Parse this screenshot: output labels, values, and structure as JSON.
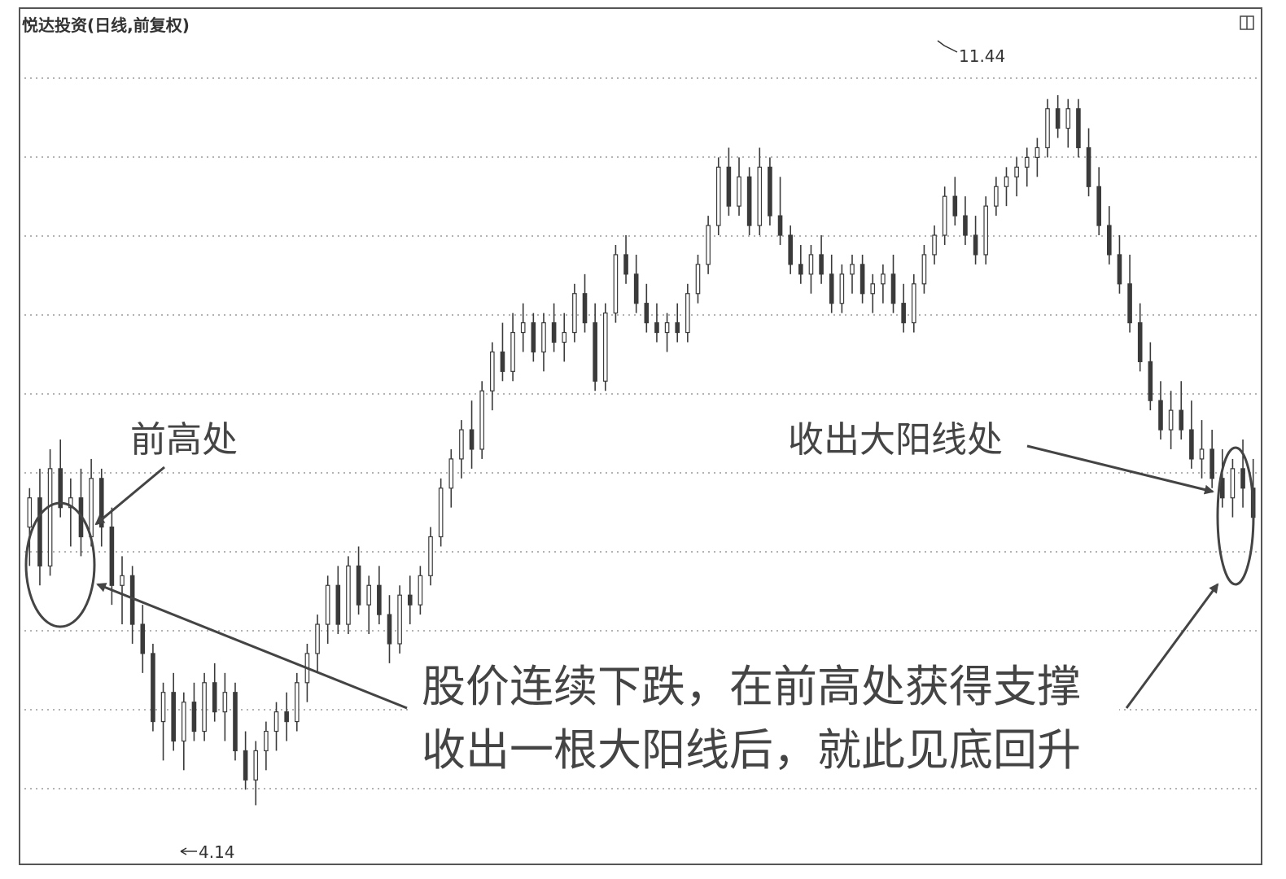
{
  "chart_data": {
    "type": "candlestick",
    "title": "悦达投资(日线,前复权)",
    "grid": true,
    "price_labels": {
      "high": "11.44",
      "low": "4.14"
    },
    "ylim": [
      3.8,
      12.0
    ],
    "marks": {
      "high_price": 11.44,
      "low_price": 4.14
    },
    "colors": {
      "bar": "#3a3a3a",
      "grid": "#9a9a9a",
      "frame": "#555555",
      "annotation": "#444444"
    },
    "candles": [
      [
        7.0,
        7.4,
        6.6,
        7.3
      ],
      [
        7.3,
        7.6,
        6.4,
        6.6
      ],
      [
        6.6,
        7.8,
        6.5,
        7.6
      ],
      [
        7.6,
        7.9,
        7.1,
        7.2
      ],
      [
        7.2,
        7.5,
        6.8,
        7.3
      ],
      [
        7.3,
        7.6,
        6.7,
        6.9
      ],
      [
        6.9,
        7.7,
        6.8,
        7.5
      ],
      [
        7.5,
        7.6,
        6.8,
        7.0
      ],
      [
        7.0,
        7.2,
        6.2,
        6.4
      ],
      [
        6.4,
        6.7,
        6.0,
        6.5
      ],
      [
        6.5,
        6.6,
        5.8,
        6.0
      ],
      [
        6.0,
        6.2,
        5.5,
        5.7
      ],
      [
        5.7,
        5.8,
        4.9,
        5.0
      ],
      [
        5.0,
        5.4,
        4.6,
        5.3
      ],
      [
        5.3,
        5.5,
        4.7,
        4.8
      ],
      [
        4.8,
        5.3,
        4.5,
        5.2
      ],
      [
        5.2,
        5.4,
        4.8,
        4.9
      ],
      [
        4.9,
        5.5,
        4.8,
        5.4
      ],
      [
        5.4,
        5.6,
        5.0,
        5.1
      ],
      [
        5.1,
        5.5,
        4.8,
        5.3
      ],
      [
        5.3,
        5.4,
        4.6,
        4.7
      ],
      [
        4.7,
        4.9,
        4.3,
        4.4
      ],
      [
        4.4,
        4.8,
        4.14,
        4.7
      ],
      [
        4.7,
        5.0,
        4.5,
        4.9
      ],
      [
        4.9,
        5.2,
        4.7,
        5.1
      ],
      [
        5.1,
        5.3,
        4.8,
        5.0
      ],
      [
        5.0,
        5.5,
        4.9,
        5.4
      ],
      [
        5.4,
        5.8,
        5.2,
        5.7
      ],
      [
        5.7,
        6.1,
        5.5,
        6.0
      ],
      [
        6.0,
        6.5,
        5.8,
        6.4
      ],
      [
        6.4,
        6.6,
        5.9,
        6.0
      ],
      [
        6.0,
        6.7,
        5.9,
        6.6
      ],
      [
        6.6,
        6.8,
        6.1,
        6.2
      ],
      [
        6.2,
        6.5,
        5.9,
        6.4
      ],
      [
        6.4,
        6.6,
        6.0,
        6.1
      ],
      [
        6.1,
        6.3,
        5.6,
        5.8
      ],
      [
        5.8,
        6.4,
        5.7,
        6.3
      ],
      [
        6.3,
        6.5,
        6.0,
        6.2
      ],
      [
        6.2,
        6.6,
        6.1,
        6.5
      ],
      [
        6.5,
        7.0,
        6.4,
        6.9
      ],
      [
        6.9,
        7.5,
        6.8,
        7.4
      ],
      [
        7.4,
        7.8,
        7.2,
        7.7
      ],
      [
        7.7,
        8.1,
        7.5,
        8.0
      ],
      [
        8.0,
        8.3,
        7.6,
        7.8
      ],
      [
        7.8,
        8.5,
        7.7,
        8.4
      ],
      [
        8.4,
        8.9,
        8.2,
        8.8
      ],
      [
        8.8,
        9.1,
        8.5,
        8.6
      ],
      [
        8.6,
        9.2,
        8.5,
        9.0
      ],
      [
        9.0,
        9.3,
        8.8,
        9.1
      ],
      [
        9.1,
        9.2,
        8.7,
        8.8
      ],
      [
        8.8,
        9.2,
        8.6,
        9.1
      ],
      [
        9.1,
        9.3,
        8.8,
        8.9
      ],
      [
        8.9,
        9.2,
        8.7,
        9.0
      ],
      [
        9.0,
        9.5,
        8.9,
        9.4
      ],
      [
        9.4,
        9.6,
        9.0,
        9.1
      ],
      [
        9.1,
        9.3,
        8.4,
        8.5
      ],
      [
        8.5,
        9.3,
        8.4,
        9.2
      ],
      [
        9.2,
        9.9,
        9.1,
        9.8
      ],
      [
        9.8,
        10.0,
        9.5,
        9.6
      ],
      [
        9.6,
        9.8,
        9.2,
        9.3
      ],
      [
        9.3,
        9.5,
        9.0,
        9.1
      ],
      [
        9.1,
        9.3,
        8.9,
        9.0
      ],
      [
        9.0,
        9.2,
        8.8,
        9.1
      ],
      [
        9.1,
        9.3,
        8.9,
        9.0
      ],
      [
        9.0,
        9.5,
        8.9,
        9.4
      ],
      [
        9.4,
        9.8,
        9.3,
        9.7
      ],
      [
        9.7,
        10.2,
        9.6,
        10.1
      ],
      [
        10.1,
        10.8,
        10.0,
        10.7
      ],
      [
        10.7,
        10.9,
        10.2,
        10.3
      ],
      [
        10.3,
        10.8,
        10.2,
        10.6
      ],
      [
        10.6,
        10.7,
        10.0,
        10.1
      ],
      [
        10.1,
        10.9,
        10.0,
        10.7
      ],
      [
        10.7,
        10.8,
        10.1,
        10.2
      ],
      [
        10.2,
        10.6,
        9.9,
        10.0
      ],
      [
        10.0,
        10.1,
        9.6,
        9.7
      ],
      [
        9.7,
        9.9,
        9.5,
        9.6
      ],
      [
        9.6,
        9.9,
        9.4,
        9.8
      ],
      [
        9.8,
        10.0,
        9.5,
        9.6
      ],
      [
        9.6,
        9.8,
        9.2,
        9.3
      ],
      [
        9.3,
        9.7,
        9.2,
        9.6
      ],
      [
        9.6,
        9.8,
        9.4,
        9.7
      ],
      [
        9.7,
        9.8,
        9.3,
        9.4
      ],
      [
        9.4,
        9.6,
        9.2,
        9.5
      ],
      [
        9.5,
        9.7,
        9.3,
        9.6
      ],
      [
        9.6,
        9.8,
        9.2,
        9.3
      ],
      [
        9.3,
        9.5,
        9.0,
        9.1
      ],
      [
        9.1,
        9.6,
        9.0,
        9.5
      ],
      [
        9.5,
        9.9,
        9.4,
        9.8
      ],
      [
        9.8,
        10.1,
        9.7,
        10.0
      ],
      [
        10.0,
        10.5,
        9.9,
        10.4
      ],
      [
        10.4,
        10.6,
        10.1,
        10.2
      ],
      [
        10.2,
        10.4,
        9.9,
        10.0
      ],
      [
        10.0,
        10.2,
        9.7,
        9.8
      ],
      [
        9.8,
        10.4,
        9.7,
        10.3
      ],
      [
        10.3,
        10.6,
        10.2,
        10.5
      ],
      [
        10.5,
        10.7,
        10.3,
        10.6
      ],
      [
        10.6,
        10.8,
        10.4,
        10.7
      ],
      [
        10.7,
        10.9,
        10.5,
        10.8
      ],
      [
        10.8,
        11.0,
        10.6,
        10.9
      ],
      [
        10.9,
        11.4,
        10.8,
        11.3
      ],
      [
        11.3,
        11.44,
        11.0,
        11.1
      ],
      [
        11.1,
        11.4,
        10.9,
        11.3
      ],
      [
        11.3,
        11.4,
        10.8,
        10.9
      ],
      [
        10.9,
        11.1,
        10.4,
        10.5
      ],
      [
        10.5,
        10.7,
        10.0,
        10.1
      ],
      [
        10.1,
        10.3,
        9.7,
        9.8
      ],
      [
        9.8,
        10.0,
        9.4,
        9.5
      ],
      [
        9.5,
        9.8,
        9.0,
        9.1
      ],
      [
        9.1,
        9.3,
        8.6,
        8.7
      ],
      [
        8.7,
        8.9,
        8.2,
        8.3
      ],
      [
        8.3,
        8.5,
        7.9,
        8.0
      ],
      [
        8.0,
        8.4,
        7.8,
        8.2
      ],
      [
        8.2,
        8.5,
        7.9,
        8.0
      ],
      [
        8.0,
        8.3,
        7.6,
        7.7
      ],
      [
        7.7,
        8.1,
        7.5,
        7.8
      ],
      [
        7.8,
        8.0,
        7.4,
        7.5
      ],
      [
        7.5,
        7.8,
        7.2,
        7.3
      ],
      [
        7.3,
        7.7,
        7.1,
        7.6
      ],
      [
        7.6,
        7.9,
        7.2,
        7.4
      ],
      [
        7.4,
        7.7,
        7.0,
        7.1
      ]
    ]
  },
  "annotations": {
    "prev_high_label": "前高处",
    "big_yang_label": "收出大阳线处",
    "note_line1": "股价连续下跌，在前高处获得支撑",
    "note_line2": "收出一根大阳线后，就此见底回升"
  },
  "window": {
    "restore_icon": "restore-icon"
  }
}
